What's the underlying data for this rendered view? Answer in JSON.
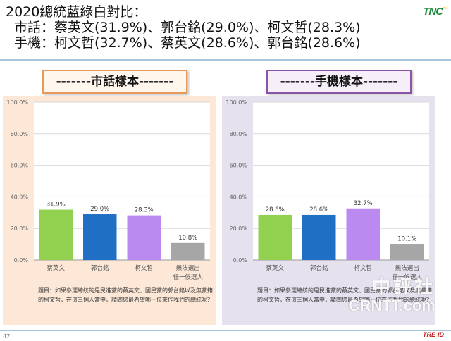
{
  "header": {
    "title": "2020總統藍綠白對比：",
    "line2": "市話：蔡英文(31.9%)、郭台銘(29.0%)、柯文哲(28.3%)",
    "line3": "手機：柯文哲(32.7%)、蔡英文(28.6%)、郭台銘(28.6%)",
    "logo": "TNC"
  },
  "labels": {
    "left": "-------市話樣本-------",
    "right": "-------手機樣本-------"
  },
  "question": "題目：如果參選總統的是民進黨的蔡英文、國民黨的郭台銘以及無黨籍的柯文哲，在這三個人當中，請問您最希望哪一位來作我們的總統呢？",
  "footer": {
    "page": "47",
    "logo": "TRE-ID"
  },
  "watermark": {
    "line1": "中評社",
    "line2": "CRNTT.com"
  },
  "colors": {
    "green": "#92d050",
    "blue": "#1f6fc4",
    "purple": "#bb8af0",
    "gray": "#a6a6a6"
  },
  "chart_data": [
    {
      "type": "bar",
      "categories": [
        "蔡英文",
        "郭台銘",
        "柯文哲",
        "無法選出\n任一候選人"
      ],
      "values": [
        31.9,
        29.0,
        28.3,
        10.8
      ],
      "value_labels": [
        "31.9%",
        "29.0%",
        "28.3%",
        "10.8%"
      ],
      "yticks": [
        "0.0%",
        "20.0%",
        "40.0%",
        "60.0%",
        "80.0%",
        "100.0%"
      ],
      "ylim": [
        0,
        100
      ],
      "grid": true
    },
    {
      "type": "bar",
      "categories": [
        "蔡英文",
        "郭台銘",
        "柯文哲",
        "無法選出\n任一候選人"
      ],
      "values": [
        28.6,
        28.6,
        32.7,
        10.1
      ],
      "value_labels": [
        "28.6%",
        "28.6%",
        "32.7%",
        "10.1%"
      ],
      "yticks": [
        "0.0%",
        "20.0%",
        "40.0%",
        "60.0%",
        "80.0%",
        "100.0%"
      ],
      "ylim": [
        0,
        100
      ],
      "grid": true
    }
  ]
}
